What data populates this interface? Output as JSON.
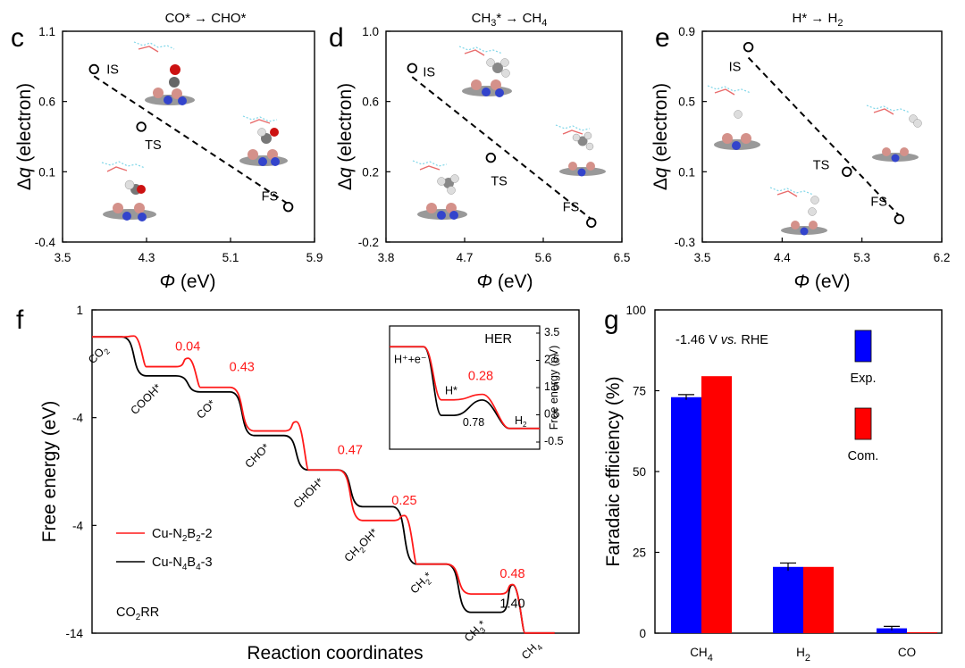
{
  "figure": {
    "panel_c": {
      "letter": "c",
      "title": "CO* → CHO*",
      "xlabel": "Φ (eV)",
      "ylabel": "Δq (electron)"
    },
    "panel_d": {
      "letter": "d",
      "title_main": "CH",
      "title_sub": "3",
      "title_tail": "* → CH",
      "title_sub2": "4",
      "xlabel": "Φ (eV)",
      "ylabel": "Δq (electron)"
    },
    "panel_e": {
      "letter": "e",
      "title_main": "H* → H",
      "title_sub": "2",
      "xlabel": "Φ (eV)",
      "ylabel": "Δq (electron)"
    },
    "panel_f": {
      "letter": "f",
      "xlabel": "Reaction coordinates",
      "ylabel": "Free energy (eV)",
      "corner_label_main": "CO",
      "corner_label_sub": "2",
      "corner_label_tail": "RR"
    },
    "panel_g": {
      "letter": "g",
      "ylabel": "Faradaic efficiency (%)",
      "annotation_pre": "-1.46 V ",
      "annotation_vs": "vs.",
      "annotation_post": " RHE",
      "legend_exp": "Exp.",
      "legend_com": "Com."
    }
  },
  "chart_data": [
    {
      "panel": "c",
      "type": "scatter",
      "title": "CO* → CHO*",
      "xlabel": "Φ (eV)",
      "ylabel": "Δq (electron)",
      "xlim": [
        3.5,
        5.9
      ],
      "ylim": [
        -0.4,
        1.1
      ],
      "xticks": [
        "3.5",
        "4.3",
        "5.1",
        "5.9"
      ],
      "yticks": [
        "-0.4",
        "0.1",
        "0.6",
        "1.1"
      ],
      "points": [
        {
          "label": "IS",
          "x": 3.8,
          "y": 0.83
        },
        {
          "label": "TS",
          "x": 4.25,
          "y": 0.42
        },
        {
          "label": "FS",
          "x": 5.65,
          "y": -0.15
        }
      ],
      "fit_line": [
        [
          3.8,
          0.78
        ],
        [
          5.65,
          -0.13
        ]
      ]
    },
    {
      "panel": "d",
      "type": "scatter",
      "title": "CH3* → CH4",
      "xlabel": "Φ (eV)",
      "ylabel": "Δq (electron)",
      "xlim": [
        3.8,
        6.5
      ],
      "ylim": [
        -0.2,
        1.0
      ],
      "xticks": [
        "3.8",
        "4.7",
        "5.6",
        "6.5"
      ],
      "yticks": [
        "-0.2",
        "0.2",
        "0.6",
        "1.0"
      ],
      "points": [
        {
          "label": "IS",
          "x": 4.1,
          "y": 0.79
        },
        {
          "label": "TS",
          "x": 5.0,
          "y": 0.28
        },
        {
          "label": "FS",
          "x": 6.15,
          "y": -0.09
        }
      ],
      "fit_line": [
        [
          4.1,
          0.74
        ],
        [
          6.15,
          -0.07
        ]
      ]
    },
    {
      "panel": "e",
      "type": "scatter",
      "title": "H* → H2",
      "xlabel": "Φ (eV)",
      "ylabel": "Δq (electron)",
      "xlim": [
        3.5,
        6.2
      ],
      "ylim": [
        -0.3,
        0.9
      ],
      "xticks": [
        "3.5",
        "4.4",
        "5.3",
        "6.2"
      ],
      "yticks": [
        "-0.3",
        "0.1",
        "0.5",
        "0.9"
      ],
      "points": [
        {
          "label": "IS",
          "x": 4.02,
          "y": 0.81
        },
        {
          "label": "TS",
          "x": 5.13,
          "y": 0.1
        },
        {
          "label": "FS",
          "x": 5.72,
          "y": -0.17
        }
      ],
      "fit_line": [
        [
          4.02,
          0.75
        ],
        [
          5.72,
          -0.15
        ]
      ]
    },
    {
      "panel": "f",
      "type": "line",
      "title": "",
      "xlabel": "Reaction coordinates",
      "ylabel": "Free energy (eV)",
      "xlim": [
        0,
        11
      ],
      "ylim": [
        -14,
        1
      ],
      "yticks": [
        "-14",
        "-4",
        "-4",
        "1"
      ],
      "states": [
        "CO2",
        "COOH*",
        "CO*",
        "CHO*",
        "CHOH*",
        "CH2OH*",
        "CH2*",
        "CH3*",
        "CH4"
      ],
      "series": [
        {
          "name": "Cu-N2B2-2",
          "color": "#ff1a1a",
          "levels": [
            0.0,
            -1.3,
            -2.2,
            -4.1,
            -5.8,
            -8.0,
            -9.9,
            -11.2,
            -12.9
          ],
          "barriers": [
            0.04,
            0.43,
            null,
            0.47,
            null,
            0.25,
            null,
            0.48
          ]
        },
        {
          "name": "Cu-N4B4-3",
          "color": "#000000",
          "levels": [
            0.0,
            -1.7,
            -2.4,
            -4.3,
            -5.8,
            -7.4,
            -9.9,
            -12.0,
            -12.9
          ],
          "barriers": [
            null,
            null,
            null,
            null,
            null,
            null,
            null,
            1.4
          ]
        }
      ],
      "barrier_labels": [
        {
          "text": "0.04",
          "color": "#ff1a1a"
        },
        {
          "text": "0.43",
          "color": "#ff1a1a"
        },
        {
          "text": "0.47",
          "color": "#ff1a1a"
        },
        {
          "text": "0.25",
          "color": "#ff1a1a"
        },
        {
          "text": "0.48",
          "color": "#ff1a1a"
        },
        {
          "text": "1.40",
          "color": "#000000"
        }
      ],
      "legend_main": [
        "Cu-N",
        "Cu-N"
      ],
      "legend_sub1": [
        "2",
        "4"
      ],
      "legend_mid": [
        "B",
        "B"
      ],
      "legend_sub2": [
        "2",
        "4"
      ],
      "legend_tail": [
        "-2",
        "-3"
      ]
    },
    {
      "panel": "f-inset",
      "type": "line",
      "title": "HER",
      "ylabel": "Free energy (eV)",
      "ylim": [
        -0.5,
        3.5
      ],
      "yticks": [
        "3.5",
        "2.5",
        "1.5",
        "0.5",
        "-0.5"
      ],
      "states": [
        "H+ + e-",
        "H*",
        "H2"
      ],
      "series": [
        {
          "name": "Cu-N2B2-2",
          "color": "#ff1a1a",
          "levels": [
            3.0,
            1.05,
            0.0
          ],
          "barrier": 0.28
        },
        {
          "name": "Cu-N4B4-3",
          "color": "#000000",
          "levels": [
            3.0,
            0.48,
            0.0
          ],
          "barrier": 0.78
        }
      ],
      "labels": {
        "start": "H⁺+e⁻",
        "mid": "H*",
        "end_main": "H",
        "end_sub": "2",
        "red_barrier": "0.28",
        "black_barrier": "0.78"
      }
    },
    {
      "panel": "g",
      "type": "bar",
      "title": "",
      "xlabel": "",
      "ylabel": "Faradaic efficiency (%)",
      "ylim": [
        0,
        100
      ],
      "yticks": [
        "0",
        "25",
        "50",
        "75",
        "100"
      ],
      "categories": [
        "CH4",
        "H2",
        "CO"
      ],
      "category_main": [
        "CH",
        "H",
        "CO"
      ],
      "category_sub": [
        "4",
        "2",
        ""
      ],
      "series": [
        {
          "name": "Exp.",
          "color": "#0000ff",
          "values": [
            73,
            20.5,
            1.5
          ],
          "errors": [
            0.8,
            1.2,
            0.6
          ]
        },
        {
          "name": "Com.",
          "color": "#ff0000",
          "values": [
            79.5,
            20.5,
            0.3
          ]
        }
      ]
    }
  ]
}
